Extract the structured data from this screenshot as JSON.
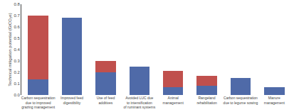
{
  "chart_data": {
    "type": "bar",
    "categories": [
      "Carbon sequestration\ndue to improved\ngrazing management",
      "Improved feed\ndigestibility",
      "Use of feed\nadditives",
      "Avoided LUC due\nto intensification\nof ruminant systems",
      "Animal\nmanagement",
      "Rangeland\nrehabilitation",
      "Carbon sequestration\ndue to legume sowing",
      "Manure\nmanagement"
    ],
    "series": [
      {
        "color": "#4F6AA8",
        "values": [
          0.14,
          0.68,
          0.2,
          0.25,
          0.07,
          0.08,
          0.15,
          0.07
        ]
      },
      {
        "color": "#C0504D",
        "values": [
          0.56,
          0.0,
          0.1,
          0.0,
          0.14,
          0.09,
          0.0,
          0.0
        ]
      }
    ],
    "stacked": true,
    "ylabel": "Technical mitigation potential (GtCO₂e)",
    "ylim": [
      0,
      0.8
    ],
    "yticks": [
      {
        "value": 0,
        "label": "0.0"
      },
      0.1,
      0.2,
      0.3,
      0.4,
      0.5,
      0.6,
      0.7,
      0.8
    ],
    "grid": false
  }
}
